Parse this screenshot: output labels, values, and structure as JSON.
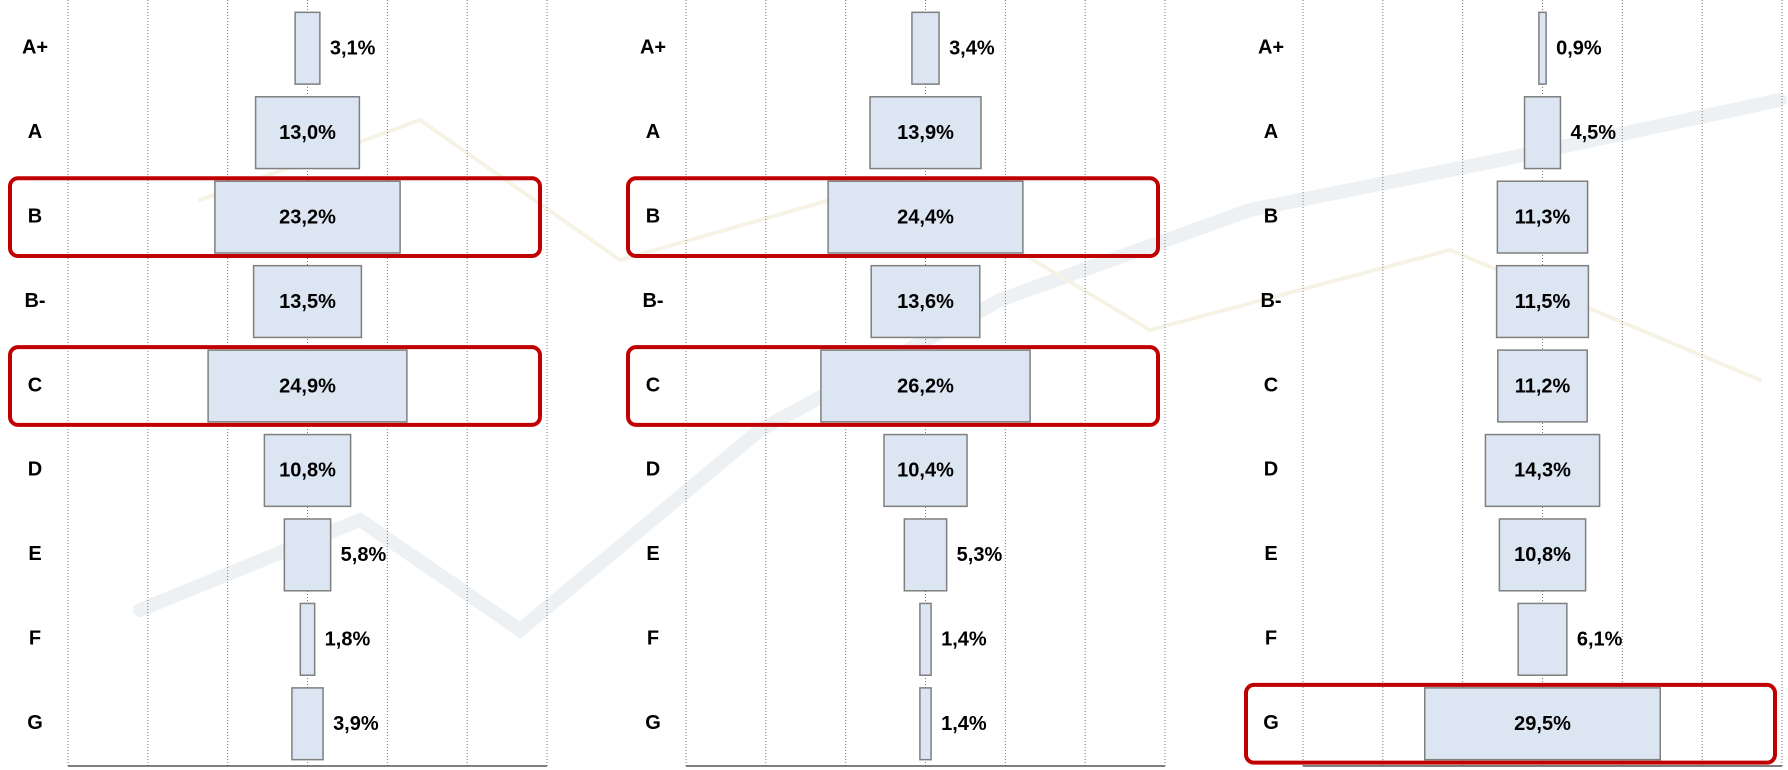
{
  "chart_data": [
    {
      "type": "funnel",
      "categories": [
        "A+",
        "A",
        "B",
        "B-",
        "C",
        "D",
        "E",
        "F",
        "G"
      ],
      "values": [
        3.1,
        13.0,
        23.2,
        13.5,
        24.9,
        10.8,
        5.8,
        1.8,
        3.9
      ],
      "value_labels": [
        "3,1%",
        "13,0%",
        "23,2%",
        "13,5%",
        "24,9%",
        "10,8%",
        "5,8%",
        "1,8%",
        "3,9%"
      ],
      "color": "#dce6f2",
      "xlim": [
        -30,
        30
      ],
      "xticks": [
        -30,
        -20,
        -10,
        0,
        10,
        20,
        30
      ],
      "grid": true,
      "highlight": [
        2,
        4
      ],
      "highlight_color": "#c00000"
    },
    {
      "type": "funnel",
      "categories": [
        "A+",
        "A",
        "B",
        "B-",
        "C",
        "D",
        "E",
        "F",
        "G"
      ],
      "values": [
        3.4,
        13.9,
        24.4,
        13.6,
        26.2,
        10.4,
        5.3,
        1.4,
        1.4
      ],
      "value_labels": [
        "3,4%",
        "13,9%",
        "24,4%",
        "13,6%",
        "26,2%",
        "10,4%",
        "5,3%",
        "1,4%",
        "1,4%"
      ],
      "color": "#dce6f2",
      "xlim": [
        -30,
        30
      ],
      "xticks": [
        -30,
        -20,
        -10,
        0,
        10,
        20,
        30
      ],
      "grid": true,
      "highlight": [
        2,
        4
      ],
      "highlight_color": "#c00000"
    },
    {
      "type": "funnel",
      "categories": [
        "A+",
        "A",
        "B",
        "B-",
        "C",
        "D",
        "E",
        "F",
        "G"
      ],
      "values": [
        0.9,
        4.5,
        11.3,
        11.5,
        11.2,
        14.3,
        10.8,
        6.1,
        29.5
      ],
      "value_labels": [
        "0,9%",
        "4,5%",
        "11,3%",
        "11,5%",
        "11,2%",
        "14,3%",
        "10,8%",
        "6,1%",
        "29,5%"
      ],
      "color": "#dce6f2",
      "xlim": [
        -30,
        30
      ],
      "xticks": [
        -30,
        -20,
        -10,
        0,
        10,
        20,
        30
      ],
      "grid": true,
      "highlight": [
        8
      ],
      "highlight_color": "#c00000"
    }
  ]
}
